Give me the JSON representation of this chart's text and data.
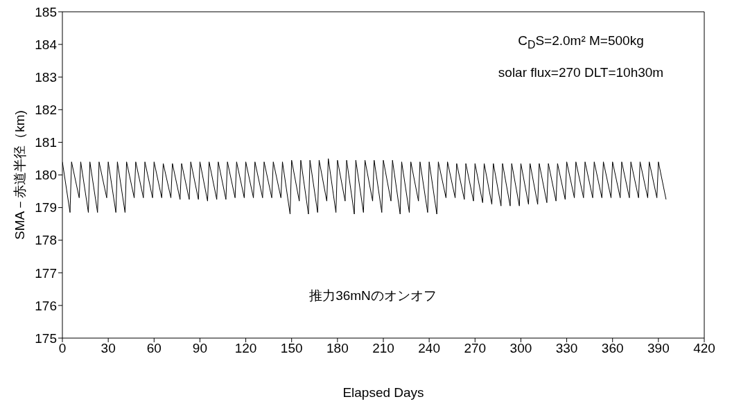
{
  "chart_data": {
    "type": "line",
    "xlabel": "Elapsed Days",
    "ylabel": "SMA－赤道半径（km)",
    "annotations": [
      "C$_{D}$S=2.0m² M=500kg",
      "solar flux=270 DLT=10h30m",
      "推力36mNのオンオフ"
    ],
    "xlim": [
      0,
      420
    ],
    "xticks": [
      0,
      30,
      60,
      90,
      120,
      150,
      180,
      210,
      240,
      270,
      300,
      330,
      360,
      390,
      420
    ],
    "ylim": [
      175,
      185
    ],
    "yticks": [
      175,
      176,
      177,
      178,
      179,
      180,
      181,
      182,
      183,
      184,
      185
    ],
    "grid": false,
    "legend": false,
    "marker": "none",
    "line_style": "solid",
    "series": [
      {
        "color": "#000000",
        "x": [
          0,
          5,
          6,
          11,
          12,
          17,
          18,
          23,
          24,
          29,
          30,
          35,
          36,
          41,
          42,
          47,
          48,
          53,
          54,
          59,
          60,
          65,
          66,
          71,
          72,
          77,
          78,
          83,
          84,
          89,
          90,
          95,
          96,
          101,
          102,
          107,
          108,
          113,
          114,
          119,
          120,
          125,
          126,
          131,
          132,
          137,
          138,
          143,
          144,
          149,
          150,
          155,
          156,
          161,
          162,
          167,
          168,
          173,
          174,
          179,
          180,
          185,
          186,
          191,
          192,
          197,
          198,
          203,
          204,
          209,
          210,
          215,
          216,
          221,
          222,
          227,
          228,
          233,
          234,
          239,
          240,
          245,
          246,
          251,
          252,
          257,
          258,
          263,
          264,
          269,
          270,
          275,
          276,
          281,
          282,
          287,
          288,
          293,
          294,
          299,
          300,
          305,
          306,
          311,
          312,
          317,
          318,
          323,
          324,
          329,
          330,
          335,
          336,
          341,
          342,
          347,
          348,
          353,
          354,
          359,
          360,
          365,
          366,
          371,
          372,
          377,
          378,
          383,
          384,
          389,
          390,
          395
        ],
        "values": [
          180.4,
          178.85,
          180.4,
          179.3,
          180.4,
          178.85,
          180.4,
          178.85,
          180.4,
          179.3,
          180.4,
          178.85,
          180.4,
          178.85,
          180.4,
          179.3,
          180.4,
          179.3,
          180.4,
          179.3,
          180.4,
          179.3,
          180.35,
          179.3,
          180.35,
          179.25,
          180.35,
          179.25,
          180.4,
          179.25,
          180.4,
          179.2,
          180.4,
          179.25,
          180.4,
          179.25,
          180.4,
          179.3,
          180.4,
          179.3,
          180.4,
          179.3,
          180.4,
          179.3,
          180.4,
          179.3,
          180.4,
          179.3,
          180.4,
          178.8,
          180.45,
          179.2,
          180.45,
          178.8,
          180.45,
          178.85,
          180.45,
          179.2,
          180.5,
          178.85,
          180.45,
          179.2,
          180.45,
          178.8,
          180.45,
          178.85,
          180.45,
          179.2,
          180.45,
          178.85,
          180.45,
          179.2,
          180.45,
          178.8,
          180.4,
          178.85,
          180.4,
          179.2,
          180.4,
          178.85,
          180.4,
          178.8,
          180.4,
          179.3,
          180.4,
          179.3,
          180.35,
          179.25,
          180.35,
          179.2,
          180.35,
          179.15,
          180.35,
          179.1,
          180.35,
          179.05,
          180.35,
          179.05,
          180.35,
          179.05,
          180.35,
          179.1,
          180.35,
          179.1,
          180.35,
          179.15,
          180.35,
          179.2,
          180.35,
          179.25,
          180.4,
          179.3,
          180.4,
          179.3,
          180.4,
          179.3,
          180.4,
          179.3,
          180.4,
          179.3,
          180.4,
          179.3,
          180.4,
          179.3,
          180.4,
          179.3,
          180.4,
          179.3,
          180.4,
          179.3,
          180.4,
          179.25
        ]
      }
    ]
  }
}
